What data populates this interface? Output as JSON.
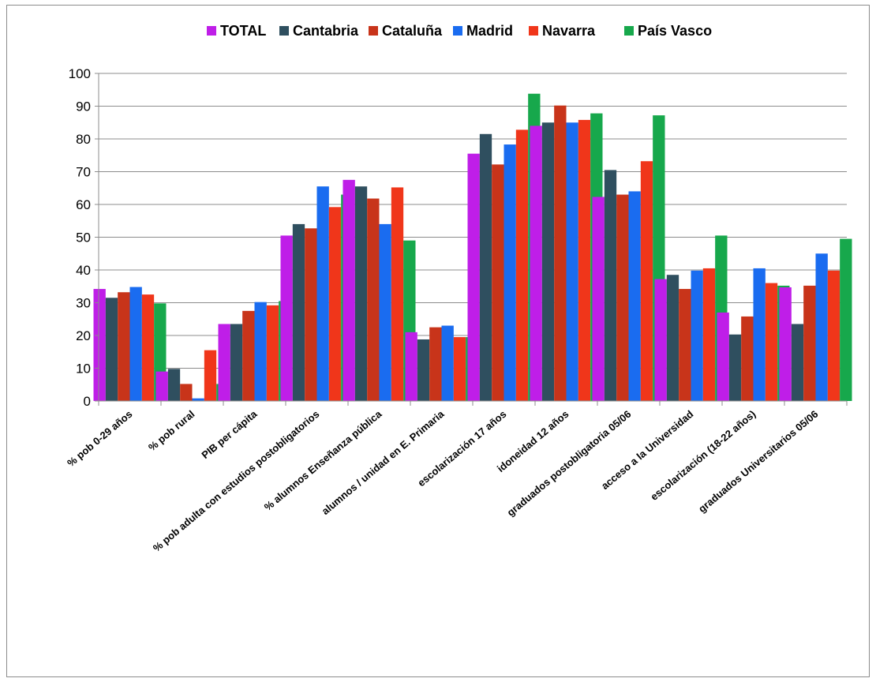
{
  "chart_data": {
    "type": "bar",
    "title": "",
    "xlabel": "",
    "ylabel": "",
    "ylim": [
      0,
      100
    ],
    "yticks": [
      0,
      10,
      20,
      30,
      40,
      50,
      60,
      70,
      80,
      90,
      100
    ],
    "grid": true,
    "legend_position": "top",
    "categories": [
      "% pob 0-29 años",
      "% pob rural",
      "PIB per cápita",
      "% pob adulta con estudios postobligatorios",
      "% alumnos Enseñanza pública",
      "alumnos / unidad en E. Primaria",
      "escolarización 17 años",
      "idoneidad 12 años",
      "graduados postobligatoria 05/06",
      "acceso a la Universidad",
      "escolarización (18-22 años)",
      "graduados Universitarios 05/06"
    ],
    "series": [
      {
        "name": "TOTAL",
        "color": "#bf1ee8",
        "values": [
          34.2,
          9,
          23.5,
          50.5,
          67.5,
          21,
          75.5,
          84,
          62.3,
          37.2,
          27,
          34.7
        ]
      },
      {
        "name": "Cantabria",
        "color": "#2f4f5f",
        "values": [
          31.5,
          9.8,
          23.5,
          54,
          65.5,
          18.8,
          81.5,
          85,
          70.5,
          38.5,
          20.3,
          23.5
        ]
      },
      {
        "name": "Cataluña",
        "color": "#c8341a",
        "values": [
          33.2,
          5.2,
          27.5,
          52.7,
          61.8,
          22.5,
          72.2,
          90.2,
          63,
          34.2,
          25.8,
          35.2
        ]
      },
      {
        "name": "Madrid",
        "color": "#1a6cf0",
        "values": [
          34.8,
          0.8,
          30.2,
          65.5,
          54,
          23,
          78.3,
          85,
          64,
          39.8,
          40.5,
          45
        ]
      },
      {
        "name": "Navarra",
        "color": "#f0361a",
        "values": [
          32.5,
          15.5,
          29.2,
          59.2,
          65.2,
          19.5,
          82.8,
          85.8,
          73.2,
          40.5,
          36,
          39.8
        ]
      },
      {
        "name": "País Vasco",
        "color": "#17a84c",
        "values": [
          29.8,
          5.2,
          30.5,
          63,
          49,
          19.5,
          93.8,
          87.8,
          87.2,
          50.5,
          35.2,
          49.5
        ]
      }
    ]
  }
}
